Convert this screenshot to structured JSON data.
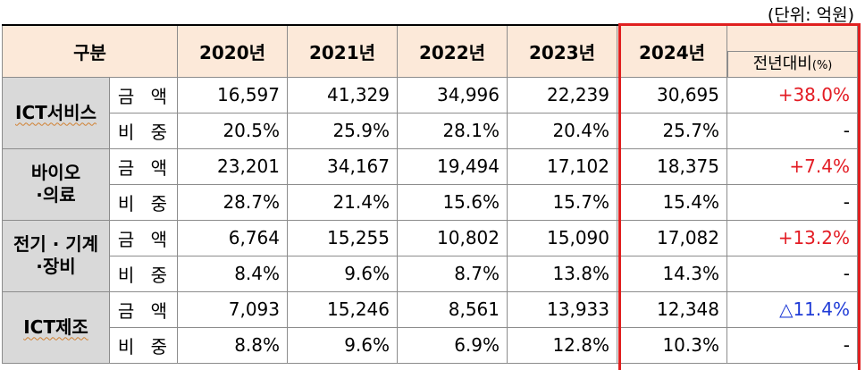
{
  "unit_note": "(단위: 억원)",
  "header": {
    "category": "구분",
    "years": [
      "2020년",
      "2021년",
      "2022년",
      "2023년",
      "2024년"
    ],
    "yoy": "전년대비",
    "yoy_unit": "(%)"
  },
  "rows": [
    {
      "category": "ICT서비스",
      "amount_label": "금 액",
      "share_label": "비 중",
      "amount": [
        "16,597",
        "41,329",
        "34,996",
        "22,239",
        "30,695"
      ],
      "share": [
        "20.5%",
        "25.9%",
        "28.1%",
        "20.4%",
        "25.7%"
      ],
      "amount_change": "+38.0%",
      "share_change": "-"
    },
    {
      "category": "바이오\n·의료",
      "amount_label": "금 액",
      "share_label": "비 중",
      "amount": [
        "23,201",
        "34,167",
        "19,494",
        "17,102",
        "18,375"
      ],
      "share": [
        "28.7%",
        "21.4%",
        "15.6%",
        "15.7%",
        "15.4%"
      ],
      "amount_change": "+7.4%",
      "share_change": "-"
    },
    {
      "category": "전기 · 기계\n·장비",
      "amount_label": "금 액",
      "share_label": "비 중",
      "amount": [
        "6,764",
        "15,255",
        "10,802",
        "15,090",
        "17,082"
      ],
      "share": [
        "8.4%",
        "9.6%",
        "8.7%",
        "13.8%",
        "14.3%"
      ],
      "amount_change": "+13.2%",
      "share_change": "-"
    },
    {
      "category": "ICT제조",
      "amount_label": "금 액",
      "share_label": "비 중",
      "amount": [
        "7,093",
        "15,246",
        "8,561",
        "13,933",
        "12,348"
      ],
      "share": [
        "8.8%",
        "9.6%",
        "6.9%",
        "12.8%",
        "10.3%"
      ],
      "amount_change": "△11.4%",
      "share_change": "-"
    }
  ],
  "colors": {
    "increase": "#e31b23",
    "decrease": "#1f3bd6",
    "highlight_border": "#e02020"
  }
}
